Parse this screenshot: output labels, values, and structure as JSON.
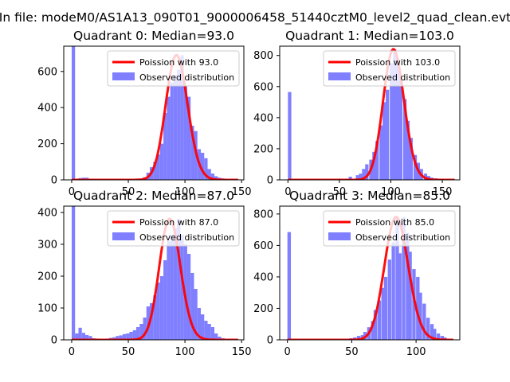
{
  "figure": {
    "suptitle": "In file: modeM0/AS1A13_090T01_9000006458_51440cztM0_level2_quad_clean.evt"
  },
  "colors": {
    "hist": "#7f7fff",
    "fit": "#ff0000",
    "axes": "#000000"
  },
  "chart_data": [
    {
      "type": "bar",
      "title": "Quadrant 0: Median=93.0",
      "legend": [
        "Poission with 93.0",
        "Observed distribution"
      ],
      "legend_position": "top-right",
      "xlim": [
        -7,
        152
      ],
      "ylim": [
        0,
        740
      ],
      "xticks": [
        0,
        50,
        100,
        150
      ],
      "yticks": [
        0,
        200,
        400,
        600
      ],
      "median": 93.0,
      "bin_width": 3,
      "bins": [
        [
          0,
          740
        ],
        [
          6,
          10
        ],
        [
          9,
          12
        ],
        [
          12,
          12
        ],
        [
          15,
          5
        ],
        [
          18,
          3
        ],
        [
          21,
          2
        ],
        [
          24,
          2
        ],
        [
          27,
          2
        ],
        [
          30,
          2
        ],
        [
          33,
          2
        ],
        [
          36,
          2
        ],
        [
          39,
          2
        ],
        [
          42,
          2
        ],
        [
          45,
          2
        ],
        [
          48,
          2
        ],
        [
          51,
          2
        ],
        [
          54,
          2
        ],
        [
          57,
          3
        ],
        [
          60,
          5
        ],
        [
          63,
          15
        ],
        [
          66,
          40
        ],
        [
          69,
          70
        ],
        [
          72,
          100
        ],
        [
          75,
          140
        ],
        [
          78,
          200
        ],
        [
          81,
          370
        ],
        [
          84,
          460
        ],
        [
          87,
          540
        ],
        [
          90,
          580
        ],
        [
          93,
          610
        ],
        [
          96,
          690
        ],
        [
          99,
          520
        ],
        [
          102,
          460
        ],
        [
          105,
          300
        ],
        [
          108,
          270
        ],
        [
          111,
          170
        ],
        [
          114,
          150
        ],
        [
          117,
          120
        ],
        [
          120,
          60
        ],
        [
          123,
          35
        ],
        [
          126,
          20
        ],
        [
          129,
          12
        ],
        [
          132,
          8
        ],
        [
          135,
          5
        ],
        [
          138,
          3
        ],
        [
          141,
          2
        ],
        [
          144,
          1
        ]
      ]
    },
    {
      "type": "bar",
      "title": "Quadrant 1: Median=103.0",
      "legend": [
        "Poission with 103.0",
        "Observed distribution"
      ],
      "legend_position": "top-right",
      "xlim": [
        -8,
        167
      ],
      "ylim": [
        0,
        860
      ],
      "xticks": [
        0,
        50,
        100,
        150
      ],
      "yticks": [
        0,
        200,
        400,
        600,
        800
      ],
      "median": 103.0,
      "bin_width": 3.3,
      "bins": [
        [
          0,
          565
        ],
        [
          59,
          20
        ],
        [
          66,
          30
        ],
        [
          69,
          40
        ],
        [
          72,
          70
        ],
        [
          75,
          100
        ],
        [
          79,
          130
        ],
        [
          82,
          180
        ],
        [
          85,
          250
        ],
        [
          89,
          350
        ],
        [
          92,
          500
        ],
        [
          95,
          580
        ],
        [
          99,
          750
        ],
        [
          102,
          840
        ],
        [
          105,
          780
        ],
        [
          108,
          660
        ],
        [
          112,
          520
        ],
        [
          115,
          380
        ],
        [
          118,
          270
        ],
        [
          122,
          160
        ],
        [
          125,
          110
        ],
        [
          128,
          70
        ],
        [
          132,
          40
        ],
        [
          135,
          25
        ],
        [
          138,
          15
        ],
        [
          142,
          10
        ],
        [
          145,
          8
        ],
        [
          148,
          5
        ],
        [
          152,
          3
        ],
        [
          155,
          2
        ],
        [
          158,
          1
        ]
      ]
    },
    {
      "type": "bar",
      "title": "Quadrant 2: Median=87.0",
      "legend": [
        "Poission with 87.0",
        "Observed distribution"
      ],
      "legend_position": "top-right",
      "xlim": [
        -7,
        152
      ],
      "ylim": [
        0,
        420
      ],
      "xticks": [
        0,
        50,
        100,
        150
      ],
      "yticks": [
        0,
        100,
        200,
        300,
        400
      ],
      "median": 87.0,
      "bin_width": 3,
      "bins": [
        [
          0,
          420
        ],
        [
          3,
          20
        ],
        [
          6,
          38
        ],
        [
          9,
          22
        ],
        [
          12,
          15
        ],
        [
          15,
          12
        ],
        [
          18,
          5
        ],
        [
          21,
          4
        ],
        [
          24,
          3
        ],
        [
          27,
          3
        ],
        [
          30,
          4
        ],
        [
          33,
          6
        ],
        [
          36,
          8
        ],
        [
          39,
          12
        ],
        [
          42,
          14
        ],
        [
          45,
          18
        ],
        [
          48,
          20
        ],
        [
          51,
          25
        ],
        [
          54,
          30
        ],
        [
          57,
          40
        ],
        [
          60,
          50
        ],
        [
          63,
          70
        ],
        [
          66,
          105
        ],
        [
          69,
          115
        ],
        [
          72,
          140
        ],
        [
          75,
          180
        ],
        [
          78,
          200
        ],
        [
          81,
          250
        ],
        [
          84,
          310
        ],
        [
          87,
          330
        ],
        [
          90,
          350
        ],
        [
          93,
          380
        ],
        [
          96,
          330
        ],
        [
          99,
          300
        ],
        [
          102,
          270
        ],
        [
          105,
          210
        ],
        [
          108,
          160
        ],
        [
          111,
          100
        ],
        [
          114,
          80
        ],
        [
          117,
          60
        ],
        [
          120,
          50
        ],
        [
          123,
          40
        ],
        [
          126,
          20
        ],
        [
          129,
          10
        ],
        [
          132,
          5
        ],
        [
          135,
          3
        ],
        [
          138,
          2
        ],
        [
          141,
          1
        ]
      ]
    },
    {
      "type": "bar",
      "title": "Quadrant 3: Median=85.0",
      "legend": [
        "Poission with 85.0",
        "Observed distribution"
      ],
      "legend_position": "top-right",
      "xlim": [
        -6,
        134
      ],
      "ylim": [
        0,
        850
      ],
      "xticks": [
        0,
        50,
        100
      ],
      "yticks": [
        0,
        200,
        400,
        600,
        800
      ],
      "median": 85.0,
      "bin_width": 2.7,
      "bins": [
        [
          0,
          685
        ],
        [
          48,
          10
        ],
        [
          51,
          15
        ],
        [
          54,
          25
        ],
        [
          57,
          30
        ],
        [
          59,
          50
        ],
        [
          62,
          80
        ],
        [
          65,
          120
        ],
        [
          67,
          190
        ],
        [
          70,
          250
        ],
        [
          73,
          330
        ],
        [
          75,
          400
        ],
        [
          78,
          510
        ],
        [
          81,
          620
        ],
        [
          84,
          780
        ],
        [
          86,
          550
        ],
        [
          89,
          780
        ],
        [
          92,
          680
        ],
        [
          94,
          560
        ],
        [
          97,
          450
        ],
        [
          100,
          400
        ],
        [
          102,
          300
        ],
        [
          105,
          230
        ],
        [
          108,
          140
        ],
        [
          111,
          100
        ],
        [
          113,
          70
        ],
        [
          116,
          40
        ],
        [
          119,
          25
        ],
        [
          121,
          15
        ],
        [
          124,
          5
        ]
      ]
    }
  ]
}
